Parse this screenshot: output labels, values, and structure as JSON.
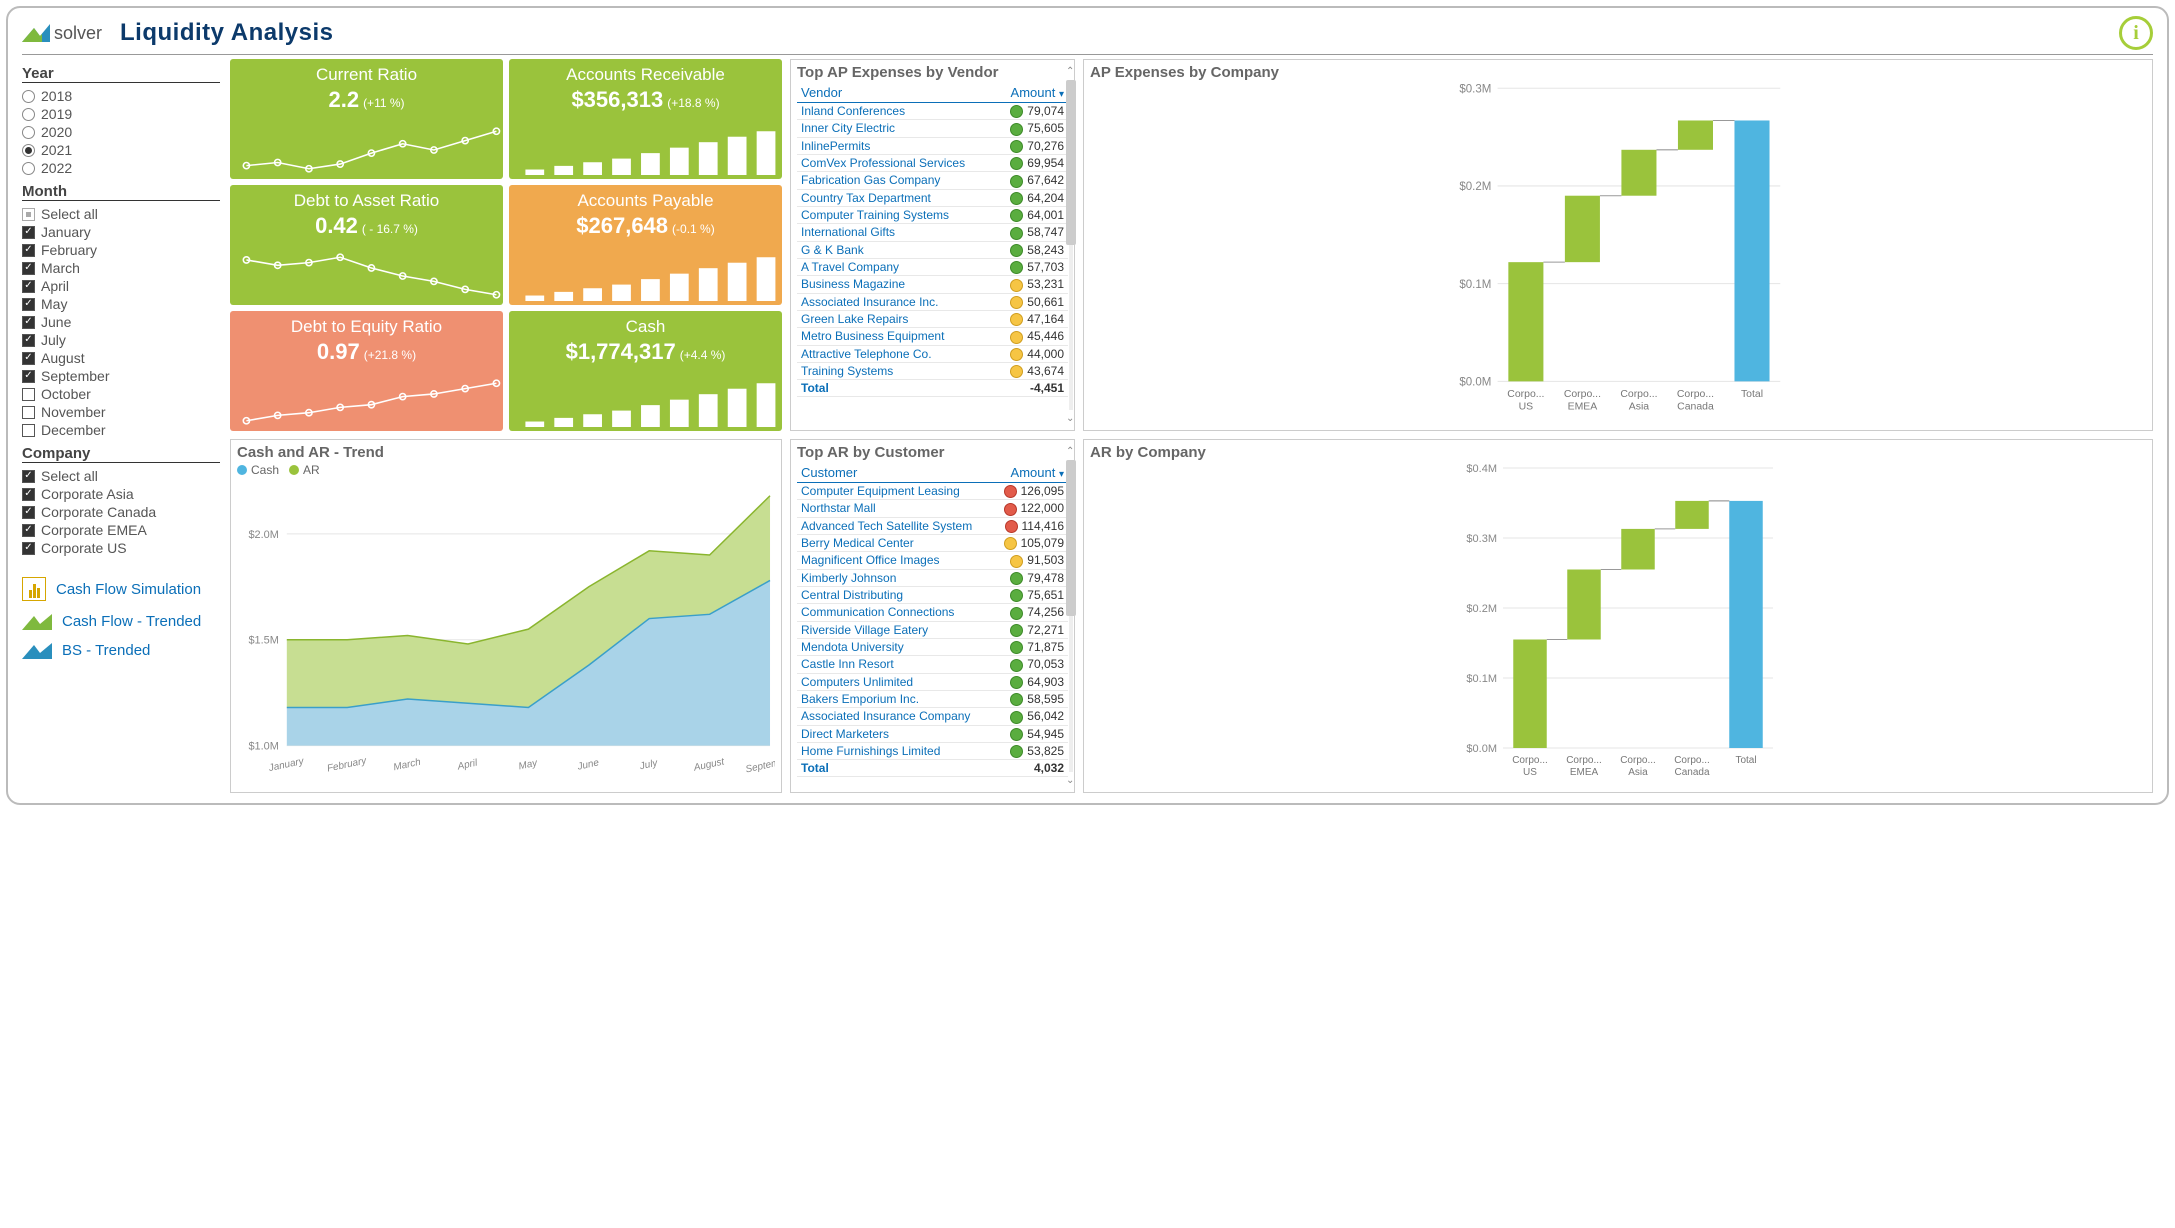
{
  "header": {
    "logo_text": "solver",
    "title": "Liquidity Analysis"
  },
  "filters": {
    "year": {
      "title": "Year",
      "options": [
        "2018",
        "2019",
        "2020",
        "2021",
        "2022"
      ],
      "selected": "2021"
    },
    "month": {
      "title": "Month",
      "select_all": "Select all",
      "options": [
        {
          "label": "January",
          "checked": true
        },
        {
          "label": "February",
          "checked": true
        },
        {
          "label": "March",
          "checked": true
        },
        {
          "label": "April",
          "checked": true
        },
        {
          "label": "May",
          "checked": true
        },
        {
          "label": "June",
          "checked": true
        },
        {
          "label": "July",
          "checked": true
        },
        {
          "label": "August",
          "checked": true
        },
        {
          "label": "September",
          "checked": true
        },
        {
          "label": "October",
          "checked": false
        },
        {
          "label": "November",
          "checked": false
        },
        {
          "label": "December",
          "checked": false
        }
      ]
    },
    "company": {
      "title": "Company",
      "select_all": "Select all",
      "options": [
        {
          "label": "Corporate Asia",
          "checked": true
        },
        {
          "label": "Corporate Canada",
          "checked": true
        },
        {
          "label": "Corporate EMEA",
          "checked": true
        },
        {
          "label": "Corporate US",
          "checked": true
        }
      ]
    }
  },
  "nav_links": [
    {
      "label": "Cash Flow Simulation",
      "icon": "bars"
    },
    {
      "label": "Cash Flow - Trended",
      "icon": "mtn-green"
    },
    {
      "label": "BS - Trended",
      "icon": "mtn-blue"
    }
  ],
  "kpis": [
    {
      "title": "Current Ratio",
      "value": "2.2",
      "delta": "(+11 %)",
      "color": "green",
      "spark": "line",
      "data": [
        30,
        32,
        28,
        31,
        38,
        44,
        40,
        46,
        52
      ]
    },
    {
      "title": "Accounts Receivable",
      "value": "$356,313",
      "delta": "(+18.8 %)",
      "color": "green",
      "spark": "bar",
      "data": [
        6,
        10,
        14,
        18,
        24,
        30,
        36,
        42,
        48
      ]
    },
    {
      "title": "Debt to Asset Ratio",
      "value": "0.42",
      "delta": "( - 16.7 %)",
      "color": "green",
      "spark": "line",
      "data": [
        48,
        44,
        46,
        50,
        42,
        36,
        32,
        26,
        22
      ]
    },
    {
      "title": "Accounts Payable",
      "value": "$267,648",
      "delta": "(-0.1 %)",
      "color": "orange",
      "spark": "bar",
      "data": [
        6,
        10,
        14,
        18,
        24,
        30,
        36,
        42,
        48
      ]
    },
    {
      "title": "Debt to Equity Ratio",
      "value": "0.97",
      "delta": "(+21.8 %)",
      "color": "salmon",
      "spark": "line",
      "data": [
        20,
        24,
        26,
        30,
        32,
        38,
        40,
        44,
        48
      ]
    },
    {
      "title": "Cash",
      "value": "$1,774,317",
      "delta": "(+4.4 %)",
      "color": "green",
      "spark": "bar",
      "data": [
        6,
        10,
        14,
        18,
        24,
        30,
        36,
        42,
        48
      ]
    }
  ],
  "top_ap": {
    "title": "Top AP Expenses by Vendor",
    "cols": [
      "Vendor",
      "Amount"
    ],
    "rows": [
      {
        "v": "Inland Conferences",
        "a": "79,074",
        "d": "g"
      },
      {
        "v": "Inner City Electric",
        "a": "75,605",
        "d": "g"
      },
      {
        "v": "InlinePermits",
        "a": "70,276",
        "d": "g"
      },
      {
        "v": "ComVex Professional Services",
        "a": "69,954",
        "d": "g"
      },
      {
        "v": "Fabrication Gas Company",
        "a": "67,642",
        "d": "g"
      },
      {
        "v": "Country Tax Department",
        "a": "64,204",
        "d": "g"
      },
      {
        "v": "Computer Training Systems",
        "a": "64,001",
        "d": "g"
      },
      {
        "v": "International Gifts",
        "a": "58,747",
        "d": "g"
      },
      {
        "v": "G & K Bank",
        "a": "58,243",
        "d": "g"
      },
      {
        "v": "A Travel Company",
        "a": "57,703",
        "d": "g"
      },
      {
        "v": "Business Magazine",
        "a": "53,231",
        "d": "y"
      },
      {
        "v": "Associated Insurance Inc.",
        "a": "50,661",
        "d": "y"
      },
      {
        "v": "Green Lake Repairs",
        "a": "47,164",
        "d": "y"
      },
      {
        "v": "Metro Business Equipment",
        "a": "45,446",
        "d": "y"
      },
      {
        "v": "Attractive Telephone Co.",
        "a": "44,000",
        "d": "y"
      },
      {
        "v": "Training Systems",
        "a": "43,674",
        "d": "y"
      }
    ],
    "total_label": "Total",
    "total": "-4,451"
  },
  "top_ar": {
    "title": "Top AR by Customer",
    "cols": [
      "Customer",
      "Amount"
    ],
    "rows": [
      {
        "v": "Computer Equipment Leasing",
        "a": "126,095",
        "d": "r"
      },
      {
        "v": "Northstar Mall",
        "a": "122,000",
        "d": "r"
      },
      {
        "v": "Advanced Tech Satellite System",
        "a": "114,416",
        "d": "r"
      },
      {
        "v": "Berry Medical Center",
        "a": "105,079",
        "d": "y"
      },
      {
        "v": "Magnificent Office Images",
        "a": "91,503",
        "d": "y"
      },
      {
        "v": "Kimberly Johnson",
        "a": "79,478",
        "d": "g"
      },
      {
        "v": "Central Distributing",
        "a": "75,651",
        "d": "g"
      },
      {
        "v": "Communication Connections",
        "a": "74,256",
        "d": "g"
      },
      {
        "v": "Riverside Village Eatery",
        "a": "72,271",
        "d": "g"
      },
      {
        "v": "Mendota University",
        "a": "71,875",
        "d": "g"
      },
      {
        "v": "Castle Inn Resort",
        "a": "70,053",
        "d": "g"
      },
      {
        "v": "Computers Unlimited",
        "a": "64,903",
        "d": "g"
      },
      {
        "v": "Bakers Emporium Inc.",
        "a": "58,595",
        "d": "g"
      },
      {
        "v": "Associated Insurance Company",
        "a": "56,042",
        "d": "g"
      },
      {
        "v": "Direct Marketers",
        "a": "54,945",
        "d": "g"
      },
      {
        "v": "Home Furnishings Limited",
        "a": "53,825",
        "d": "g"
      }
    ],
    "total_label": "Total",
    "total": "4,032"
  },
  "trend_chart": {
    "title": "Cash and AR - Trend",
    "legend": [
      {
        "label": "Cash",
        "color": "#4fb5e0"
      },
      {
        "label": "AR",
        "color": "#9ac33c"
      }
    ],
    "months": [
      "January",
      "February",
      "March",
      "April",
      "May",
      "June",
      "July",
      "August",
      "September"
    ],
    "yticks": [
      "$1.0M",
      "$1.5M",
      "$2.0M"
    ],
    "ylim": [
      1.0,
      2.2
    ],
    "series": {
      "total": [
        1.5,
        1.5,
        1.52,
        1.48,
        1.55,
        1.75,
        1.92,
        1.9,
        2.18
      ],
      "cash": [
        1.18,
        1.18,
        1.22,
        1.2,
        1.18,
        1.38,
        1.6,
        1.62,
        1.78
      ]
    },
    "colors": {
      "cash_fill": "#a9d3e8",
      "ar_fill": "#c7de92",
      "grid": "#e5e5e5"
    }
  },
  "ap_comp_chart": {
    "title": "AP Expenses by Company",
    "yticks": [
      "$0.0M",
      "$0.1M",
      "$0.2M",
      "$0.3M"
    ],
    "ymax": 0.3,
    "cats": [
      {
        "l1": "Corpo...",
        "l2": "US",
        "v": 0.122
      },
      {
        "l1": "Corpo...",
        "l2": "EMEA",
        "v": 0.068
      },
      {
        "l1": "Corpo...",
        "l2": "Asia",
        "v": 0.047
      },
      {
        "l1": "Corpo...",
        "l2": "Canada",
        "v": 0.03
      }
    ],
    "total_label": "Total",
    "total": 0.267,
    "colors": {
      "bar": "#9ac33c",
      "total": "#4fb5e0"
    }
  },
  "ar_comp_chart": {
    "title": "AR by Company",
    "yticks": [
      "$0.0M",
      "$0.1M",
      "$0.2M",
      "$0.3M",
      "$0.4M"
    ],
    "ymax": 0.4,
    "cats": [
      {
        "l1": "Corpo...",
        "l2": "US",
        "v": 0.155
      },
      {
        "l1": "Corpo...",
        "l2": "EMEA",
        "v": 0.1
      },
      {
        "l1": "Corpo...",
        "l2": "Asia",
        "v": 0.058
      },
      {
        "l1": "Corpo...",
        "l2": "Canada",
        "v": 0.04
      }
    ],
    "total_label": "Total",
    "total": 0.353,
    "colors": {
      "bar": "#9ac33c",
      "total": "#4fb5e0"
    }
  }
}
